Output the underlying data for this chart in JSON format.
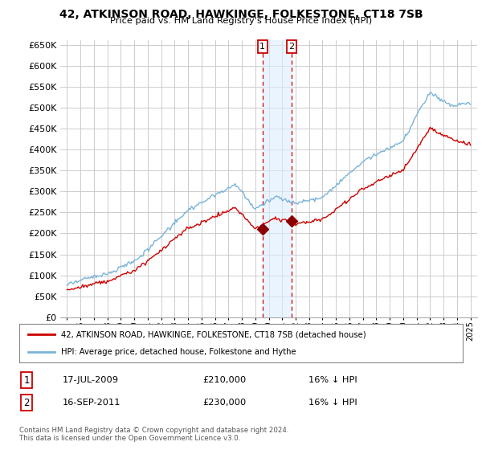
{
  "title": "42, ATKINSON ROAD, HAWKINGE, FOLKESTONE, CT18 7SB",
  "subtitle": "Price paid vs. HM Land Registry's House Price Index (HPI)",
  "ytick_vals": [
    0,
    50000,
    100000,
    150000,
    200000,
    250000,
    300000,
    350000,
    400000,
    450000,
    500000,
    550000,
    600000,
    650000
  ],
  "ylim": [
    0,
    660000
  ],
  "xstart_year": 1995,
  "xend_year": 2025,
  "legend_line1": "42, ATKINSON ROAD, HAWKINGE, FOLKESTONE, CT18 7SB (detached house)",
  "legend_line2": "HPI: Average price, detached house, Folkestone and Hythe",
  "sale1_date": "17-JUL-2009",
  "sale1_price": 210000,
  "sale1_hpi": "16% ↓ HPI",
  "sale1_label": "1",
  "sale1_x": 2009.54,
  "sale2_date": "16-SEP-2011",
  "sale2_price": 230000,
  "sale2_label": "2",
  "sale2_x": 2011.71,
  "sale2_hpi": "16% ↓ HPI",
  "footnote": "Contains HM Land Registry data © Crown copyright and database right 2024.\nThis data is licensed under the Open Government Licence v3.0.",
  "hpi_color": "#7ab4d8",
  "sale_color": "#cc0000",
  "marker_color": "#8b0000",
  "shade_color": "#ddeeff",
  "vline_color": "#cc0000",
  "background_color": "#ffffff",
  "grid_color": "#cccccc"
}
